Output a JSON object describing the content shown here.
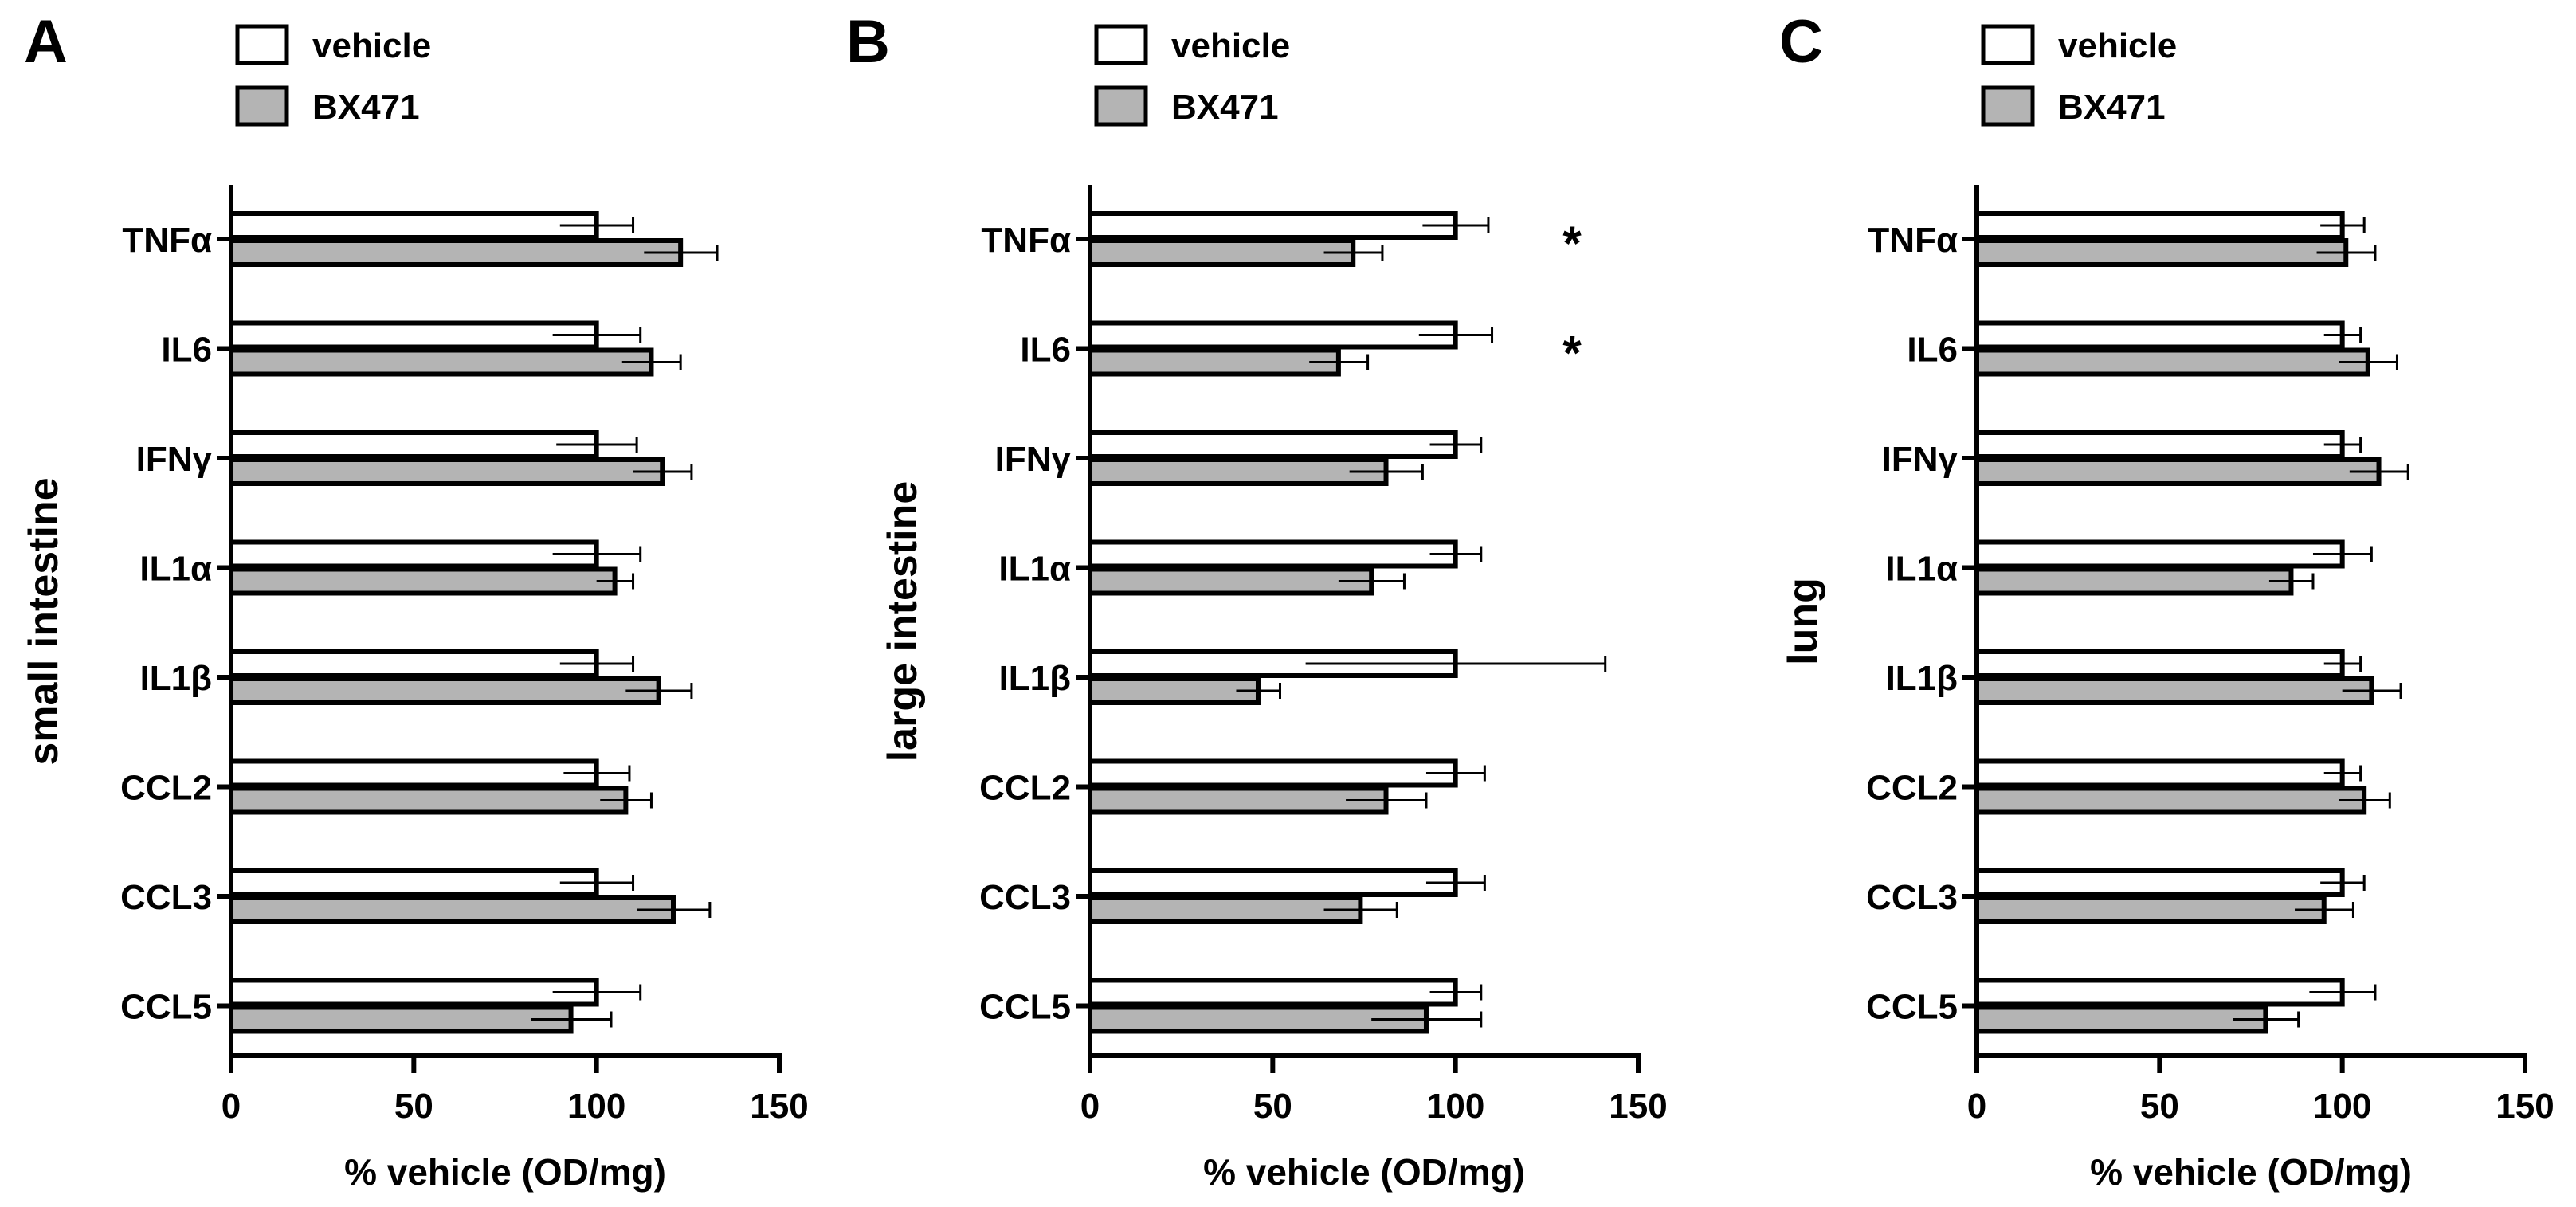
{
  "legend": {
    "vehicle": "vehicle",
    "treated": "BX471"
  },
  "colors": {
    "vehicle": "#ffffff",
    "treated": "#b4b4b4",
    "stroke": "#000000"
  },
  "chart_data": [
    {
      "type": "bar",
      "orientation": "horizontal",
      "panel": "A",
      "tissue": "small intestine",
      "xlabel": "% vehicle (OD/mg)",
      "xlim": [
        0,
        150
      ],
      "xticks": [
        0,
        50,
        100,
        150
      ],
      "categories": [
        "TNFα",
        "IL6",
        "IFNγ",
        "IL1α",
        "IL1β",
        "CCL2",
        "CCL3",
        "CCL5"
      ],
      "series": [
        {
          "name": "vehicle",
          "values": [
            100,
            100,
            100,
            100,
            100,
            100,
            100,
            100
          ],
          "errors": [
            10,
            12,
            11,
            12,
            10,
            9,
            10,
            12
          ]
        },
        {
          "name": "BX471",
          "values": [
            123,
            115,
            118,
            105,
            117,
            108,
            121,
            93
          ],
          "errors": [
            10,
            8,
            8,
            5,
            9,
            7,
            10,
            11
          ]
        }
      ],
      "annotations": []
    },
    {
      "type": "bar",
      "orientation": "horizontal",
      "panel": "B",
      "tissue": "large intestine",
      "xlabel": "% vehicle (OD/mg)",
      "xlim": [
        0,
        150
      ],
      "xticks": [
        0,
        50,
        100,
        150
      ],
      "categories": [
        "TNFα",
        "IL6",
        "IFNγ",
        "IL1α",
        "IL1β",
        "CCL2",
        "CCL3",
        "CCL5"
      ],
      "series": [
        {
          "name": "vehicle",
          "values": [
            100,
            100,
            100,
            100,
            100,
            100,
            100,
            100
          ],
          "errors": [
            9,
            10,
            7,
            7,
            41,
            8,
            8,
            7
          ]
        },
        {
          "name": "BX471",
          "values": [
            72,
            68,
            81,
            77,
            46,
            81,
            74,
            92
          ],
          "errors": [
            8,
            8,
            10,
            9,
            6,
            11,
            10,
            15
          ]
        }
      ],
      "annotations": [
        {
          "category": "TNFα",
          "text": "*"
        },
        {
          "category": "IL6",
          "text": "*"
        }
      ]
    },
    {
      "type": "bar",
      "orientation": "horizontal",
      "panel": "C",
      "tissue": "lung",
      "xlabel": "% vehicle (OD/mg)",
      "xlim": [
        0,
        150
      ],
      "xticks": [
        0,
        50,
        100,
        150
      ],
      "categories": [
        "TNFα",
        "IL6",
        "IFNγ",
        "IL1α",
        "IL1β",
        "CCL2",
        "CCL3",
        "CCL5"
      ],
      "series": [
        {
          "name": "vehicle",
          "values": [
            100,
            100,
            100,
            100,
            100,
            100,
            100,
            100
          ],
          "errors": [
            6,
            5,
            5,
            8,
            5,
            5,
            6,
            9
          ]
        },
        {
          "name": "BX471",
          "values": [
            101,
            107,
            110,
            86,
            108,
            106,
            95,
            79
          ],
          "errors": [
            8,
            8,
            8,
            6,
            8,
            7,
            8,
            9
          ]
        }
      ],
      "annotations": []
    }
  ]
}
